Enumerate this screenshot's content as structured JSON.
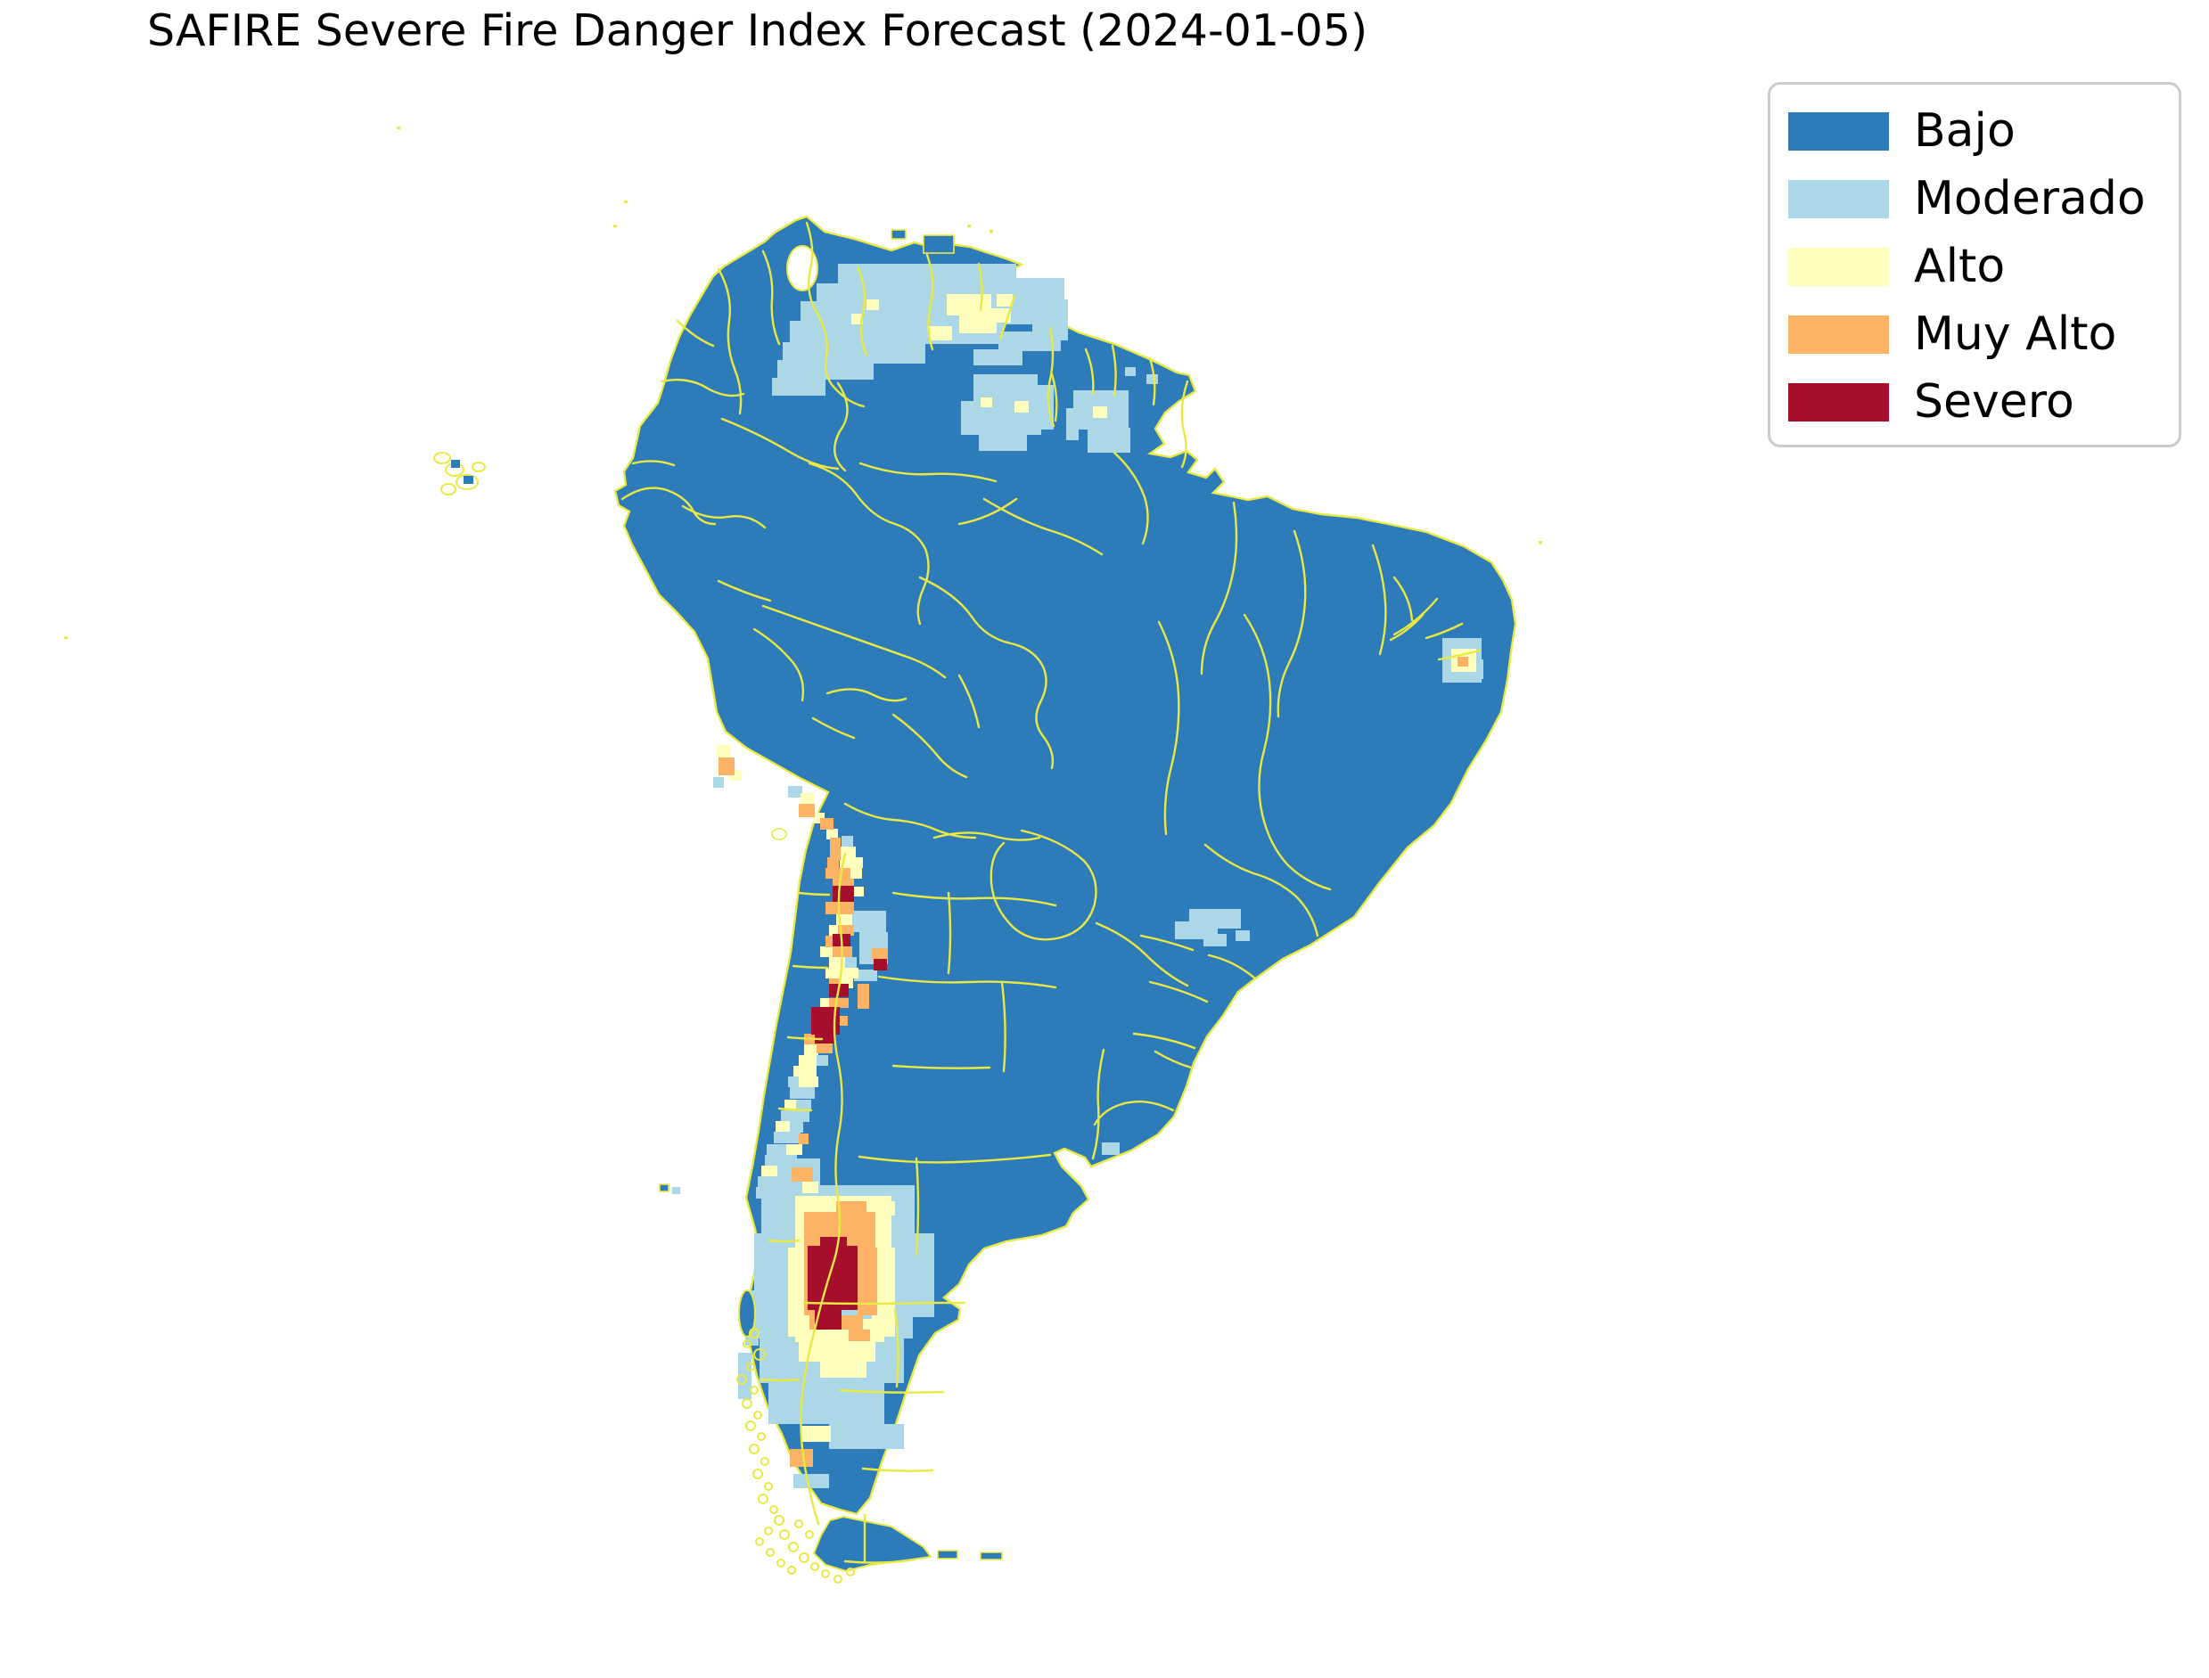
{
  "title": "SAFIRE Severe Fire Danger Index Forecast (2024-01-05)",
  "legend": {
    "items": [
      {
        "key": "bajo",
        "label": "Bajo",
        "color": "#2d7bb8"
      },
      {
        "key": "moderado",
        "label": "Moderado",
        "color": "#abd7e6"
      },
      {
        "key": "alto",
        "label": "Alto",
        "color": "#ffffbe"
      },
      {
        "key": "muy_alto",
        "label": "Muy Alto",
        "color": "#fdb366"
      },
      {
        "key": "severo",
        "label": "Severo",
        "color": "#a50f2b"
      }
    ]
  },
  "map": {
    "region": "South America",
    "base_level": "Bajo",
    "border_color": "#e9e943",
    "background_color": "#ffffff",
    "danger_areas_summary": [
      {
        "area": "Venezuelan Llanos / N Colombia",
        "level": "Moderado with Alto patches"
      },
      {
        "area": "Guyana highlands / N Brazil (Roraima)",
        "level": "Moderado with Alto specks"
      },
      {
        "area": "NE Brazil coastal pocket",
        "level": "Moderado-Alto with Muy Alto cell"
      },
      {
        "area": "S Brazil (Parana) pocket",
        "level": "Moderado"
      },
      {
        "area": "Peruvian coast",
        "level": "Alto / Muy Alto scattered"
      },
      {
        "area": "Central Chile coastal strip",
        "level": "Alto / Muy Alto with Severo blobs"
      },
      {
        "area": "N Patagonia (Neuquen / Rio Negro)",
        "level": "Severo core ringed by Muy Alto, Alto, Moderado"
      },
      {
        "area": "S Patagonia scattered",
        "level": "Moderado / Alto / Muy Alto cells"
      }
    ],
    "levels": {
      "moderado": [
        [
          940,
          296,
          200,
          28
        ],
        [
          916,
          318,
          250,
          26
        ],
        [
          898,
          338,
          262,
          26
        ],
        [
          886,
          360,
          240,
          26
        ],
        [
          878,
          384,
          160,
          24
        ],
        [
          872,
          404,
          108,
          22
        ],
        [
          866,
          424,
          60,
          20
        ],
        [
          1136,
          312,
          58,
          28
        ],
        [
          1150,
          336,
          48,
          26
        ],
        [
          1158,
          360,
          40,
          22
        ],
        [
          1120,
          372,
          70,
          22
        ],
        [
          1092,
          392,
          55,
          18
        ],
        [
          1092,
          420,
          72,
          34
        ],
        [
          1078,
          450,
          90,
          38
        ],
        [
          1098,
          486,
          54,
          20
        ],
        [
          1148,
          432,
          34,
          50
        ],
        [
          1204,
          438,
          62,
          44
        ],
        [
          1220,
          480,
          48,
          28
        ],
        [
          1196,
          458,
          14,
          36
        ],
        [
          1286,
          420,
          13,
          11
        ],
        [
          1262,
          412,
          12,
          10
        ],
        [
          1618,
          716,
          44,
          50
        ],
        [
          1652,
          740,
          12,
          22
        ],
        [
          1334,
          1020,
          58,
          22
        ],
        [
          1318,
          1034,
          48,
          20
        ],
        [
          1350,
          1048,
          26,
          14
        ],
        [
          1386,
          1044,
          16,
          12
        ],
        [
          1236,
          1282,
          20,
          14
        ],
        [
          800,
          872,
          12,
          12
        ],
        [
          884,
          882,
          16,
          13
        ],
        [
          944,
          938,
          13,
          12
        ],
        [
          956,
          1022,
          38,
          24
        ],
        [
          964,
          1046,
          32,
          36
        ],
        [
          948,
          1074,
          13,
          12
        ],
        [
          958,
          1088,
          26,
          13
        ],
        [
          916,
          1184,
          13,
          12
        ],
        [
          884,
          1208,
          13,
          12
        ],
        [
          886,
          1220,
          28,
          13
        ],
        [
          892,
          1234,
          18,
          13
        ],
        [
          876,
          1246,
          32,
          13
        ],
        [
          886,
          1258,
          15,
          13
        ],
        [
          868,
          1270,
          30,
          13
        ],
        [
          860,
          1284,
          22,
          13
        ],
        [
          858,
          1296,
          36,
          13
        ],
        [
          872,
          1308,
          22,
          13
        ],
        [
          850,
          1320,
          36,
          13
        ],
        [
          848,
          1332,
          22,
          13
        ],
        [
          846,
          1384,
          18,
          58
        ],
        [
          836,
          1448,
          15,
          62
        ],
        [
          828,
          1518,
          15,
          52
        ],
        [
          854,
          1330,
          172,
          64
        ],
        [
          846,
          1394,
          182,
          56
        ],
        [
          846,
          1450,
          178,
          52
        ],
        [
          852,
          1502,
          162,
          50
        ],
        [
          862,
          1552,
          130,
          46
        ],
        [
          1014,
          1384,
          34,
          94
        ],
        [
          876,
          1300,
          44,
          30
        ],
        [
          930,
          1598,
          84,
          28
        ],
        [
          890,
          1654,
          40,
          16
        ],
        [
          1026,
          1390,
          22,
          86
        ],
        [
          754,
          1332,
          9,
          8
        ]
      ],
      "alto": [
        [
          1062,
          330,
          50,
          24
        ],
        [
          1076,
          354,
          42,
          20
        ],
        [
          1108,
          346,
          26,
          16
        ],
        [
          1042,
          366,
          26,
          16
        ],
        [
          972,
          336,
          14,
          12
        ],
        [
          955,
          352,
          13,
          12
        ],
        [
          1118,
          330,
          18,
          14
        ],
        [
          1138,
          450,
          16,
          13
        ],
        [
          1100,
          446,
          13,
          11
        ],
        [
          1226,
          456,
          16,
          13
        ],
        [
          1628,
          728,
          28,
          26
        ],
        [
          804,
          836,
          16,
          14
        ],
        [
          818,
          864,
          13,
          12
        ],
        [
          898,
          890,
          15,
          13
        ],
        [
          912,
          912,
          13,
          12
        ],
        [
          927,
          930,
          13,
          12
        ],
        [
          938,
          950,
          12,
          12
        ],
        [
          934,
          950,
          26,
          13
        ],
        [
          942,
          962,
          26,
          12
        ],
        [
          954,
          974,
          13,
          12
        ],
        [
          958,
          995,
          11,
          11
        ],
        [
          938,
          1026,
          18,
          12
        ],
        [
          930,
          1038,
          13,
          12
        ],
        [
          920,
          1062,
          16,
          12
        ],
        [
          930,
          1074,
          18,
          12
        ],
        [
          926,
          1086,
          24,
          12
        ],
        [
          948,
          1086,
          15,
          12
        ],
        [
          942,
          1098,
          15,
          11
        ],
        [
          920,
          1120,
          13,
          12
        ],
        [
          902,
          1172,
          16,
          12
        ],
        [
          896,
          1184,
          20,
          12
        ],
        [
          890,
          1196,
          26,
          12
        ],
        [
          896,
          1208,
          22,
          12
        ],
        [
          880,
          1234,
          13,
          12
        ],
        [
          870,
          1258,
          16,
          12
        ],
        [
          882,
          1284,
          18,
          12
        ],
        [
          854,
          1308,
          18,
          12
        ],
        [
          892,
          1342,
          108,
          58
        ],
        [
          884,
          1400,
          34,
          100
        ],
        [
          978,
          1400,
          26,
          100
        ],
        [
          892,
          1480,
          100,
          26
        ],
        [
          896,
          1506,
          86,
          22
        ],
        [
          920,
          1528,
          52,
          18
        ],
        [
          948,
          1348,
          56,
          16
        ],
        [
          898,
          1600,
          34,
          18
        ],
        [
          900,
          1326,
          18,
          13
        ]
      ],
      "muy_alto": [
        [
          806,
          850,
          18,
          20
        ],
        [
          896,
          902,
          18,
          15
        ],
        [
          920,
          918,
          15,
          13
        ],
        [
          931,
          940,
          12,
          26
        ],
        [
          928,
          962,
          13,
          12
        ],
        [
          926,
          974,
          28,
          12
        ],
        [
          934,
          986,
          24,
          10
        ],
        [
          926,
          1012,
          32,
          14
        ],
        [
          940,
          1038,
          18,
          12
        ],
        [
          926,
          1050,
          12,
          13
        ],
        [
          934,
          1062,
          22,
          12
        ],
        [
          978,
          1064,
          18,
          13
        ],
        [
          930,
          1098,
          13,
          10
        ],
        [
          962,
          1104,
          13,
          28
        ],
        [
          930,
          1120,
          22,
          11
        ],
        [
          940,
          1140,
          11,
          11
        ],
        [
          902,
          1160,
          13,
          12
        ],
        [
          916,
          1170,
          18,
          12
        ],
        [
          896,
          1272,
          11,
          12
        ],
        [
          1635,
          737,
          12,
          11
        ],
        [
          902,
          1360,
          80,
          40
        ],
        [
          938,
          1348,
          34,
          50
        ],
        [
          902,
          1400,
          12,
          76
        ],
        [
          962,
          1400,
          22,
          76
        ],
        [
          908,
          1476,
          60,
          16
        ],
        [
          888,
          1310,
          24,
          16
        ],
        [
          952,
          1492,
          24,
          13
        ],
        [
          886,
          1626,
          26,
          20
        ],
        [
          890,
          1312,
          22,
          14
        ]
      ],
      "severo": [
        [
          934,
          994,
          24,
          18
        ],
        [
          934,
          1048,
          20,
          14
        ],
        [
          980,
          1076,
          15,
          13
        ],
        [
          930,
          1104,
          22,
          15
        ],
        [
          910,
          1130,
          32,
          31
        ],
        [
          914,
          1160,
          24,
          11
        ],
        [
          906,
          1398,
          56,
          72
        ],
        [
          914,
          1470,
          30,
          22
        ],
        [
          920,
          1388,
          30,
          12
        ]
      ],
      "bajo_islets": [
        [
          740,
          1329,
          10,
          8
        ],
        [
          1052,
          1740,
          22,
          9
        ],
        [
          1100,
          1742,
          24,
          8
        ],
        [
          1036,
          264,
          34,
          20
        ],
        [
          1000,
          258,
          16,
          10
        ]
      ]
    }
  }
}
